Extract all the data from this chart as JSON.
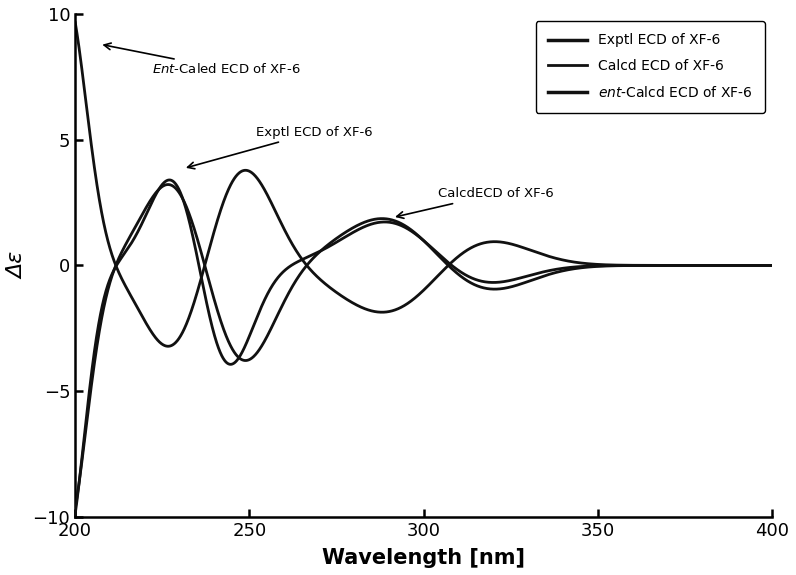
{
  "xlabel": "Wavelength [nm]",
  "ylabel": "Δε",
  "xlim": [
    200,
    400
  ],
  "ylim": [
    -10,
    10
  ],
  "xticks": [
    200,
    250,
    300,
    350,
    400
  ],
  "yticks": [
    -10,
    -5,
    0,
    5,
    10
  ],
  "line_color": "#111111",
  "legend_entries": [
    "Exptl ECD of XF-6",
    "Calcd ECD of XF-6",
    "ent-Calcd ECD of XF-6"
  ],
  "figwidth": 7.96,
  "figheight": 5.75,
  "dpi": 100
}
